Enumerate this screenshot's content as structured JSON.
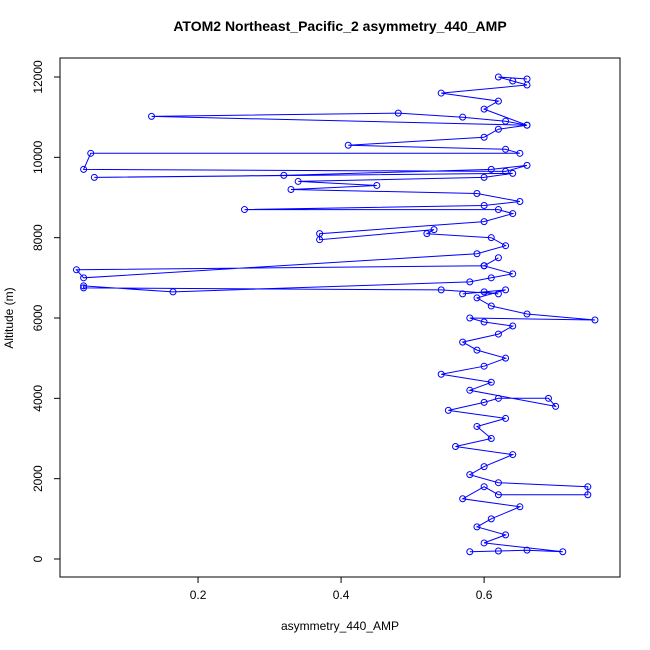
{
  "chart_data": {
    "type": "line",
    "title": "ATOM2 Northeast_Pacific_2 asymmetry_440_AMP",
    "x_label": "asymmetry_440_AMP",
    "y_label": "Altitude (m)",
    "xlim": [
      0.007,
      0.79
    ],
    "ylim": [
      -448,
      12473
    ],
    "xticks": [
      0.2,
      0.4,
      0.6
    ],
    "yticks": [
      0,
      2000,
      4000,
      6000,
      8000,
      10000,
      12000
    ],
    "grid": false,
    "markers": true,
    "x": [
      0.58,
      0.62,
      0.66,
      0.71,
      0.6,
      0.63,
      0.59,
      0.61,
      0.65,
      0.57,
      0.6,
      0.62,
      0.745,
      0.745,
      0.62,
      0.58,
      0.6,
      0.64,
      0.56,
      0.61,
      0.59,
      0.63,
      0.55,
      0.6,
      0.62,
      0.69,
      0.7,
      0.58,
      0.61,
      0.54,
      0.6,
      0.63,
      0.59,
      0.57,
      0.62,
      0.64,
      0.6,
      0.58,
      0.755,
      0.66,
      0.61,
      0.59,
      0.63,
      0.57,
      0.6,
      0.62,
      0.54,
      0.04,
      0.04,
      0.165,
      0.58,
      0.61,
      0.64,
      0.6,
      0.62,
      0.6,
      0.03,
      0.04,
      0.59,
      0.63,
      0.61,
      0.52,
      0.53,
      0.37,
      0.37,
      0.6,
      0.64,
      0.62,
      0.265,
      0.6,
      0.65,
      0.59,
      0.33,
      0.45,
      0.34,
      0.6,
      0.64,
      0.055,
      0.32,
      0.61,
      0.66,
      0.63,
      0.04,
      0.05,
      0.65,
      0.63,
      0.41,
      0.6,
      0.62,
      0.66,
      0.135,
      0.48,
      0.57,
      0.63,
      0.66,
      0.6,
      0.62,
      0.54,
      0.66,
      0.64,
      0.62,
      0.66
    ],
    "series": [
      {
        "color": "#0000ff",
        "values": [
          180,
          200,
          220,
          180,
          400,
          600,
          800,
          1000,
          1300,
          1500,
          1800,
          1600,
          1600,
          1800,
          1900,
          2100,
          2300,
          2600,
          2800,
          3000,
          3300,
          3500,
          3700,
          3900,
          4000,
          4000,
          3800,
          4200,
          4400,
          4600,
          4800,
          5000,
          5200,
          5400,
          5600,
          5800,
          5900,
          6000,
          5950,
          6100,
          6300,
          6500,
          6700,
          6600,
          6650,
          6600,
          6700,
          6750,
          6800,
          6650,
          6900,
          7000,
          7100,
          7300,
          7500,
          7300,
          7200,
          7000,
          7600,
          7800,
          8000,
          8100,
          8200,
          7950,
          8100,
          8400,
          8600,
          8700,
          8700,
          8800,
          8900,
          9100,
          9200,
          9300,
          9400,
          9500,
          9600,
          9500,
          9550,
          9700,
          9800,
          9650,
          9700,
          10100,
          10100,
          10200,
          10300,
          10500,
          10700,
          10800,
          11020,
          11100,
          11000,
          10900,
          10800,
          11200,
          11400,
          11600,
          11800,
          11900,
          12000,
          11950
        ]
      }
    ]
  }
}
